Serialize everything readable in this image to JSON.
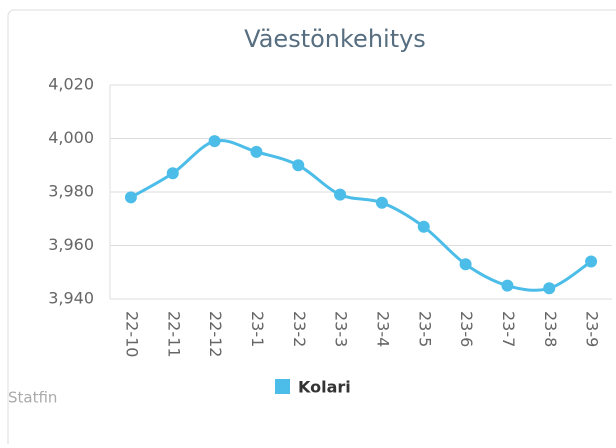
{
  "chart_data": {
    "type": "line",
    "title": "Väestönkehitys",
    "credit": "Statfin",
    "categories": [
      "22-10",
      "22-11",
      "22-12",
      "23-1",
      "23-2",
      "23-3",
      "23-4",
      "23-5",
      "23-6",
      "23-7",
      "23-8",
      "23-9"
    ],
    "series": [
      {
        "name": "Kolari",
        "color": "#4cbde8",
        "values": [
          3978,
          3987,
          3999,
          3995,
          3990,
          3979,
          3976,
          3967,
          3953,
          3945,
          3944,
          3954
        ]
      }
    ],
    "ylim": [
      3940,
      4020
    ],
    "yticks": [
      {
        "value": 3940,
        "label": "3,940"
      },
      {
        "value": 3960,
        "label": "3,960"
      },
      {
        "value": 3980,
        "label": "3,980"
      },
      {
        "value": 4000,
        "label": "4,000"
      },
      {
        "value": 4020,
        "label": "4,020"
      }
    ],
    "grid": true,
    "legend": "bottom"
  }
}
